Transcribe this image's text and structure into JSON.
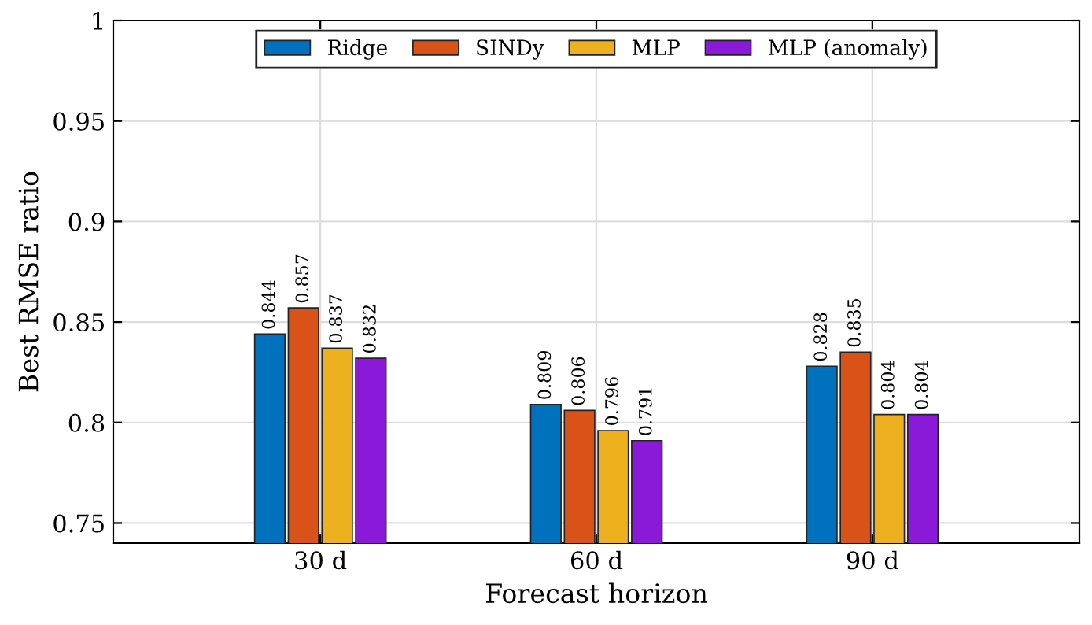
{
  "chart_data": {
    "type": "bar",
    "xlabel": "Forecast horizon",
    "ylabel": "Best RMSE ratio",
    "categories": [
      "30 d",
      "60 d",
      "90 d"
    ],
    "series": [
      {
        "name": "Ridge",
        "color": "#0072bd",
        "values": [
          0.844,
          0.809,
          0.828
        ]
      },
      {
        "name": "SINDy",
        "color": "#d95319",
        "values": [
          0.857,
          0.806,
          0.835
        ]
      },
      {
        "name": "MLP",
        "color": "#edb120",
        "values": [
          0.837,
          0.796,
          0.804
        ]
      },
      {
        "name": "MLP (anomaly)",
        "color": "#8a1ad8",
        "values": [
          0.832,
          0.791,
          0.804
        ]
      }
    ],
    "ylim": [
      0.74,
      1
    ],
    "yticks": [
      0.75,
      0.8,
      0.85,
      0.9,
      0.95,
      1
    ],
    "data_labels": true,
    "grid": true,
    "legend": "top"
  }
}
